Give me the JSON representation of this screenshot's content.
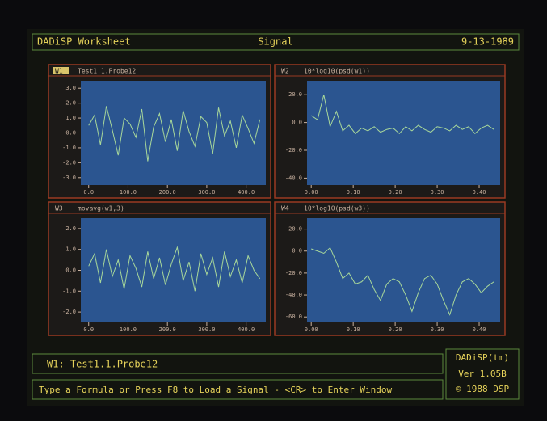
{
  "header": {
    "left": "DADiSP Worksheet",
    "center": "Signal",
    "right": "9-13-1989"
  },
  "windows": [
    {
      "label": "W1",
      "title": "Test1.1.Probe12",
      "xlim": [
        -20,
        450
      ],
      "ylim": [
        -3.5,
        3.5
      ],
      "yticks": [
        {
          "value": 3,
          "label": "3.0"
        },
        {
          "value": 2,
          "label": "2.0"
        },
        {
          "value": 1,
          "label": "1.0"
        },
        {
          "value": 0,
          "label": "0.0"
        },
        {
          "value": -1,
          "label": "-1.0"
        },
        {
          "value": -2,
          "label": "-2.0"
        },
        {
          "value": -3,
          "label": "-3.0"
        }
      ],
      "xticks": [
        {
          "value": 0,
          "label": "0.0"
        },
        {
          "value": 100,
          "label": "100.0"
        },
        {
          "value": 200,
          "label": "200.0"
        },
        {
          "value": 300,
          "label": "300.0"
        },
        {
          "value": 400,
          "label": "400.0"
        }
      ],
      "x": [
        0,
        15,
        30,
        45,
        60,
        75,
        90,
        105,
        120,
        135,
        150,
        165,
        180,
        195,
        210,
        225,
        240,
        255,
        270,
        285,
        300,
        315,
        330,
        345,
        360,
        375,
        390,
        405,
        420,
        435
      ],
      "trace": [
        0.5,
        1.2,
        -0.8,
        1.8,
        0.2,
        -1.5,
        1.0,
        0.6,
        -0.3,
        1.6,
        -1.9,
        0.4,
        1.3,
        -0.6,
        0.9,
        -1.2,
        1.5,
        0.1,
        -0.9,
        1.1,
        0.7,
        -1.4,
        1.7,
        -0.2,
        0.8,
        -1.0,
        1.2,
        0.3,
        -0.7,
        0.9
      ]
    },
    {
      "label": "W2",
      "title": "10*log10(psd(w1))",
      "xlim": [
        -0.01,
        0.45
      ],
      "ylim": [
        -45,
        30
      ],
      "yticks": [
        {
          "value": 20,
          "label": "20.0"
        },
        {
          "value": 0,
          "label": "0.0"
        },
        {
          "value": -20,
          "label": "-20.0"
        },
        {
          "value": -40,
          "label": "-40.0"
        }
      ],
      "xticks": [
        {
          "value": 0,
          "label": "0.00"
        },
        {
          "value": 0.1,
          "label": "0.10"
        },
        {
          "value": 0.2,
          "label": "0.20"
        },
        {
          "value": 0.3,
          "label": "0.30"
        },
        {
          "value": 0.4,
          "label": "0.40"
        }
      ],
      "x": [
        0,
        0.015,
        0.03,
        0.045,
        0.06,
        0.075,
        0.09,
        0.105,
        0.12,
        0.135,
        0.15,
        0.165,
        0.18,
        0.195,
        0.21,
        0.225,
        0.24,
        0.255,
        0.27,
        0.285,
        0.3,
        0.315,
        0.33,
        0.345,
        0.36,
        0.375,
        0.39,
        0.405,
        0.42,
        0.435
      ],
      "trace": [
        5,
        2,
        20,
        -3,
        8,
        -6,
        -2,
        -8,
        -4,
        -6,
        -3,
        -7,
        -5,
        -4,
        -8,
        -3,
        -6,
        -2,
        -5,
        -7,
        -3,
        -4,
        -6,
        -2,
        -5,
        -3,
        -8,
        -4,
        -2,
        -5
      ]
    },
    {
      "label": "W3",
      "title": "movavg(w1,3)",
      "xlim": [
        -20,
        450
      ],
      "ylim": [
        -2.5,
        2.5
      ],
      "yticks": [
        {
          "value": 2,
          "label": "2.0"
        },
        {
          "value": 1,
          "label": "1.0"
        },
        {
          "value": 0,
          "label": "0.0"
        },
        {
          "value": -1,
          "label": "-1.0"
        },
        {
          "value": -2,
          "label": "-2.0"
        }
      ],
      "xticks": [
        {
          "value": 0,
          "label": "0.0"
        },
        {
          "value": 100,
          "label": "100.0"
        },
        {
          "value": 200,
          "label": "200.0"
        },
        {
          "value": 300,
          "label": "300.0"
        },
        {
          "value": 400,
          "label": "400.0"
        }
      ],
      "x": [
        0,
        15,
        30,
        45,
        60,
        75,
        90,
        105,
        120,
        135,
        150,
        165,
        180,
        195,
        210,
        225,
        240,
        255,
        270,
        285,
        300,
        315,
        330,
        345,
        360,
        375,
        390,
        405,
        420,
        435
      ],
      "trace": [
        0.2,
        0.8,
        -0.6,
        1.0,
        -0.3,
        0.5,
        -0.9,
        0.7,
        0.1,
        -0.8,
        0.9,
        -0.4,
        0.6,
        -0.7,
        0.3,
        1.1,
        -0.5,
        0.4,
        -1.0,
        0.8,
        -0.2,
        0.6,
        -0.8,
        0.9,
        -0.3,
        0.5,
        -0.6,
        0.7,
        0.0,
        -0.4
      ]
    },
    {
      "label": "W4",
      "title": "10*log10(psd(w3))",
      "xlim": [
        -0.01,
        0.45
      ],
      "ylim": [
        -65,
        30
      ],
      "yticks": [
        {
          "value": 20,
          "label": "20.0"
        },
        {
          "value": 0,
          "label": "0.0"
        },
        {
          "value": -20,
          "label": "-20.0"
        },
        {
          "value": -40,
          "label": "-40.0"
        },
        {
          "value": -60,
          "label": "-60.0"
        }
      ],
      "xticks": [
        {
          "value": 0,
          "label": "0.00"
        },
        {
          "value": 0.1,
          "label": "0.10"
        },
        {
          "value": 0.2,
          "label": "0.20"
        },
        {
          "value": 0.3,
          "label": "0.30"
        },
        {
          "value": 0.4,
          "label": "0.40"
        }
      ],
      "x": [
        0,
        0.015,
        0.03,
        0.045,
        0.06,
        0.075,
        0.09,
        0.105,
        0.12,
        0.135,
        0.15,
        0.165,
        0.18,
        0.195,
        0.21,
        0.225,
        0.24,
        0.255,
        0.27,
        0.285,
        0.3,
        0.315,
        0.33,
        0.345,
        0.36,
        0.375,
        0.39,
        0.405,
        0.42,
        0.435
      ],
      "trace": [
        2,
        0,
        -2,
        3,
        -10,
        -25,
        -20,
        -30,
        -28,
        -22,
        -35,
        -45,
        -30,
        -25,
        -28,
        -40,
        -55,
        -38,
        -25,
        -22,
        -30,
        -45,
        -58,
        -40,
        -28,
        -25,
        -30,
        -38,
        -32,
        -28
      ]
    }
  ],
  "status": "W1: Test1.1.Probe12",
  "prompt": "Type a Formula or Press F8 to Load a Signal - <CR> to Enter Window",
  "badge": [
    "DADiSP(tm)",
    "Ver 1.05B",
    "© 1988 DSP"
  ]
}
